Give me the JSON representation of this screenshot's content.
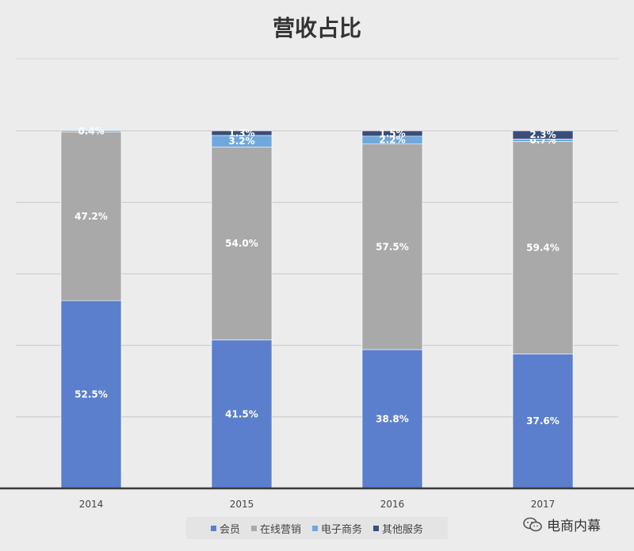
{
  "chart_data": {
    "type": "bar",
    "stacked": true,
    "title": "营收占比",
    "categories": [
      "2014",
      "2015",
      "2016",
      "2017"
    ],
    "ylim": [
      0,
      100
    ],
    "grid": true,
    "legend_position": "bottom",
    "series": [
      {
        "name": "会员",
        "color": "#5b7fcc",
        "values": [
          52.5,
          41.5,
          38.8,
          37.6
        ],
        "labels": [
          "52.5%",
          "41.5%",
          "38.8%",
          "37.6%"
        ]
      },
      {
        "name": "在线营销",
        "color": "#a9a9a9",
        "values": [
          47.2,
          54.0,
          57.5,
          59.4
        ],
        "labels": [
          "47.2%",
          "54.0%",
          "57.5%",
          "59.4%"
        ]
      },
      {
        "name": "电子商务",
        "color": "#6fa8dc",
        "values": [
          0.4,
          3.2,
          2.2,
          0.7
        ],
        "labels": [
          "0.4%",
          "3.2%",
          "2.2%",
          "0.7%"
        ]
      },
      {
        "name": "其他服务",
        "color": "#3b4d7a",
        "values": [
          0.0,
          1.3,
          1.5,
          2.3
        ],
        "labels": [
          "",
          "1.3%",
          "1.5%",
          "2.3%"
        ]
      }
    ]
  },
  "watermark": {
    "text": "电商内幕",
    "icon": "wechat-icon"
  }
}
